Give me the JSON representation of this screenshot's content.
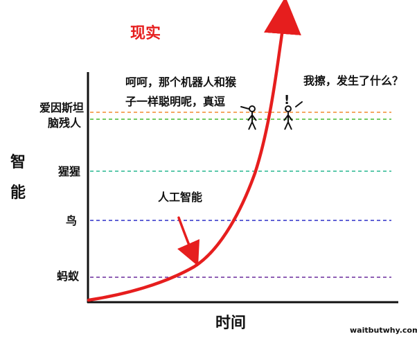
{
  "diagram": {
    "title": "现实",
    "y_axis_label_top": "智",
    "y_axis_label_bottom": "能",
    "x_axis_label": "时间",
    "watermark": "waitbutwhy.com",
    "curve_label": "人工智能",
    "left_speech_line1": "呵呵，那个机器人和猴",
    "left_speech_line2": "子一样聪明呢，真逗",
    "right_speech": "我擦，发生了什么？",
    "exclamation": "!",
    "levels": [
      {
        "label_line1": "爱因斯坦",
        "label_line2": "",
        "color": "#f28a2e"
      },
      {
        "label_line1": "脑残人",
        "label_line2": "",
        "color": "#42b82e"
      },
      {
        "label_line1": "猩猩",
        "label_line2": "",
        "color": "#25b58f"
      },
      {
        "label_line1": "鸟",
        "label_line2": "",
        "color": "#2b2fc7"
      },
      {
        "label_line1": "蚂蚁",
        "label_line2": "",
        "color": "#6a2a9b"
      }
    ],
    "colors": {
      "curve": "#e61e1e",
      "axes": "#111111",
      "title": "#e61e1e"
    }
  }
}
